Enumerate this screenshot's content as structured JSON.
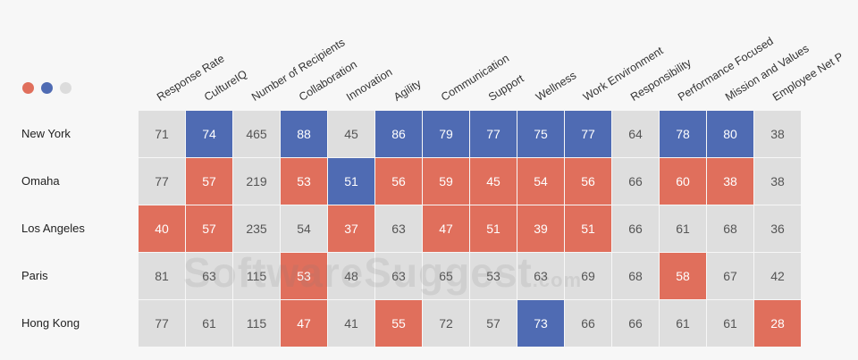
{
  "legend_dots": [
    {
      "name": "red-dot",
      "color": "#e06f5c"
    },
    {
      "name": "blue-dot",
      "color": "#4f6bb3"
    },
    {
      "name": "gray-dot",
      "color": "#dcdcdc"
    }
  ],
  "columns": [
    "Response Rate",
    "CultureIQ",
    "Number of Recipients",
    "Collaboration",
    "Innovation",
    "Agility",
    "Communication",
    "Support",
    "Wellness",
    "Work Environment",
    "Responsibility",
    "Performance Focused",
    "Mission and Values",
    "Employee Net P"
  ],
  "rows": [
    {
      "label": "New York",
      "values": [
        71,
        74,
        465,
        88,
        45,
        86,
        79,
        77,
        75,
        77,
        64,
        78,
        80,
        38
      ],
      "status": [
        "n",
        "b",
        "n",
        "b",
        "n",
        "b",
        "b",
        "b",
        "b",
        "b",
        "n",
        "b",
        "b",
        "n"
      ]
    },
    {
      "label": "Omaha",
      "values": [
        77,
        57,
        219,
        53,
        51,
        56,
        59,
        45,
        54,
        56,
        66,
        60,
        38,
        38
      ],
      "status": [
        "n",
        "r",
        "n",
        "r",
        "b",
        "r",
        "r",
        "r",
        "r",
        "r",
        "n",
        "r",
        "r",
        "n"
      ]
    },
    {
      "label": "Los Angeles",
      "values": [
        40,
        57,
        235,
        54,
        37,
        63,
        47,
        51,
        39,
        51,
        66,
        61,
        68,
        36
      ],
      "status": [
        "r",
        "r",
        "n",
        "n",
        "r",
        "n",
        "r",
        "r",
        "r",
        "r",
        "n",
        "n",
        "n",
        "n"
      ]
    },
    {
      "label": "Paris",
      "values": [
        81,
        63,
        115,
        53,
        48,
        63,
        65,
        53,
        63,
        69,
        68,
        58,
        67,
        42
      ],
      "status": [
        "n",
        "n",
        "n",
        "r",
        "n",
        "n",
        "n",
        "n",
        "n",
        "n",
        "n",
        "r",
        "n",
        "n"
      ]
    },
    {
      "label": "Hong Kong",
      "values": [
        77,
        61,
        115,
        47,
        41,
        55,
        72,
        57,
        73,
        66,
        66,
        61,
        61,
        28
      ],
      "status": [
        "n",
        "n",
        "n",
        "r",
        "n",
        "r",
        "n",
        "n",
        "b",
        "n",
        "n",
        "n",
        "n",
        "r"
      ]
    }
  ],
  "colors": {
    "blue": "#4f6bb3",
    "red": "#e06f5c",
    "neutral": "#dedede"
  },
  "watermark": {
    "main": "SoftwareSuggest",
    "suffix": ".com"
  }
}
